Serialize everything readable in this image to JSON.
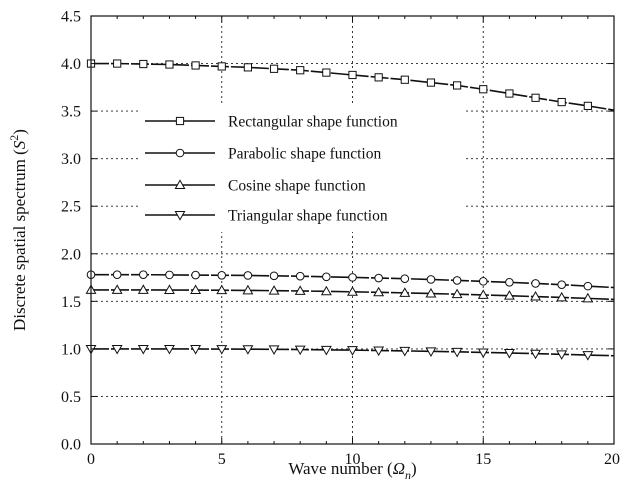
{
  "chart_data": {
    "type": "line",
    "xlabel": "Wave number (",
    "xlabel_symbol": "Ω",
    "xlabel_subscript": "n",
    "xlabel_close": ")",
    "ylabel": "Discrete spatial spectrum (",
    "ylabel_symbol": "S",
    "ylabel_superscript": "2",
    "ylabel_close": ")",
    "xlim": [
      0,
      20
    ],
    "ylim": [
      0,
      4.5
    ],
    "xticks": [
      0,
      5,
      10,
      15,
      20
    ],
    "yticks": [
      0.0,
      0.5,
      1.0,
      1.5,
      2.0,
      2.5,
      3.0,
      3.5,
      4.0,
      4.5
    ],
    "xtick_labels": [
      "0",
      "5",
      "10",
      "15",
      "20"
    ],
    "ytick_labels": [
      "0.0",
      "0.5",
      "1.0",
      "1.5",
      "2.0",
      "2.5",
      "3.0",
      "3.5",
      "4.0",
      "4.5"
    ],
    "grid": true,
    "legend_position": "center-left",
    "x": [
      0,
      1,
      2,
      3,
      4,
      5,
      6,
      7,
      8,
      9,
      10,
      11,
      12,
      13,
      14,
      15,
      16,
      17,
      18,
      19,
      20
    ],
    "series": [
      {
        "name": "Rectangular shape function",
        "marker": "square",
        "values": [
          4.0,
          4.0,
          3.995,
          3.99,
          3.98,
          3.97,
          3.96,
          3.945,
          3.93,
          3.905,
          3.88,
          3.855,
          3.83,
          3.8,
          3.77,
          3.73,
          3.685,
          3.64,
          3.595,
          3.555,
          3.51
        ]
      },
      {
        "name": "Parabolic shape function",
        "marker": "circle",
        "values": [
          1.78,
          1.78,
          1.78,
          1.778,
          1.776,
          1.774,
          1.772,
          1.768,
          1.764,
          1.758,
          1.752,
          1.745,
          1.738,
          1.73,
          1.72,
          1.71,
          1.7,
          1.688,
          1.675,
          1.66,
          1.645
        ]
      },
      {
        "name": "Cosine shape function",
        "marker": "triangle-up",
        "values": [
          1.62,
          1.62,
          1.62,
          1.619,
          1.618,
          1.617,
          1.615,
          1.612,
          1.609,
          1.605,
          1.6,
          1.595,
          1.589,
          1.582,
          1.575,
          1.567,
          1.559,
          1.55,
          1.541,
          1.531,
          1.52
        ]
      },
      {
        "name": "Triangular shape function",
        "marker": "triangle-down",
        "values": [
          1.0,
          1.0,
          1.0,
          1.0,
          0.999,
          0.998,
          0.997,
          0.995,
          0.993,
          0.99,
          0.987,
          0.983,
          0.979,
          0.974,
          0.969,
          0.963,
          0.957,
          0.95,
          0.943,
          0.935,
          0.928
        ]
      }
    ]
  }
}
